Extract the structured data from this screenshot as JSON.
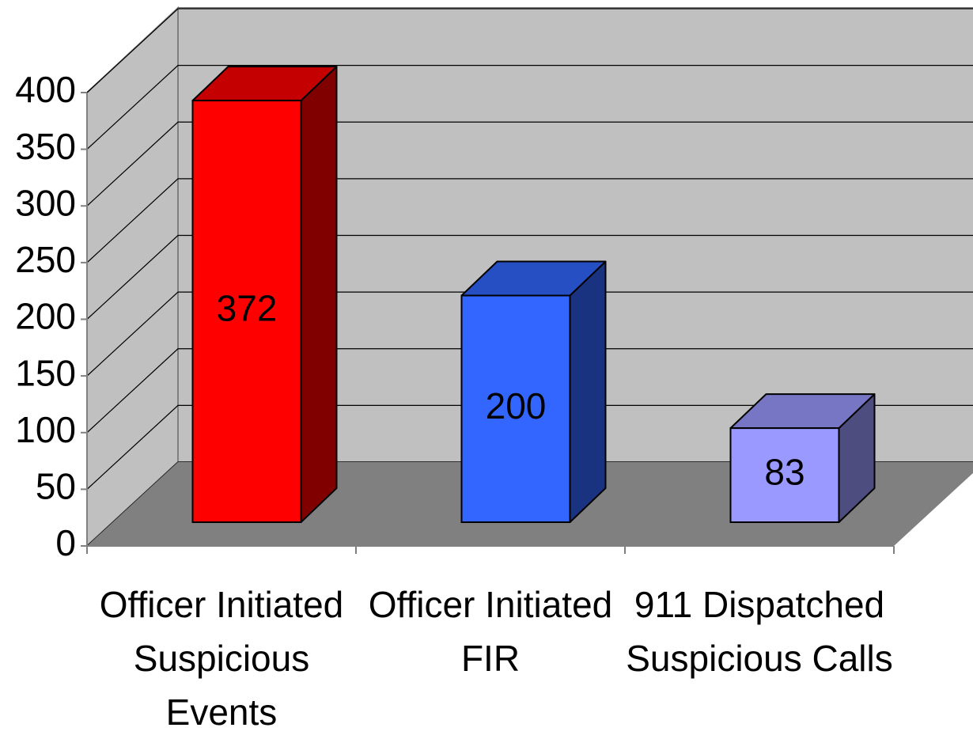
{
  "chart_data": {
    "type": "bar",
    "categories": [
      "Officer Initiated Suspicious Events",
      "Officer Initiated FIR",
      "911 Dispatched Suspicious Calls"
    ],
    "values": [
      372,
      200,
      83
    ],
    "colors": [
      "#ff0000",
      "#3366ff",
      "#9999ff"
    ],
    "ylim": [
      0,
      400
    ],
    "yticks": [
      0,
      50,
      100,
      150,
      200,
      250,
      300,
      350,
      400
    ],
    "grid": true
  }
}
